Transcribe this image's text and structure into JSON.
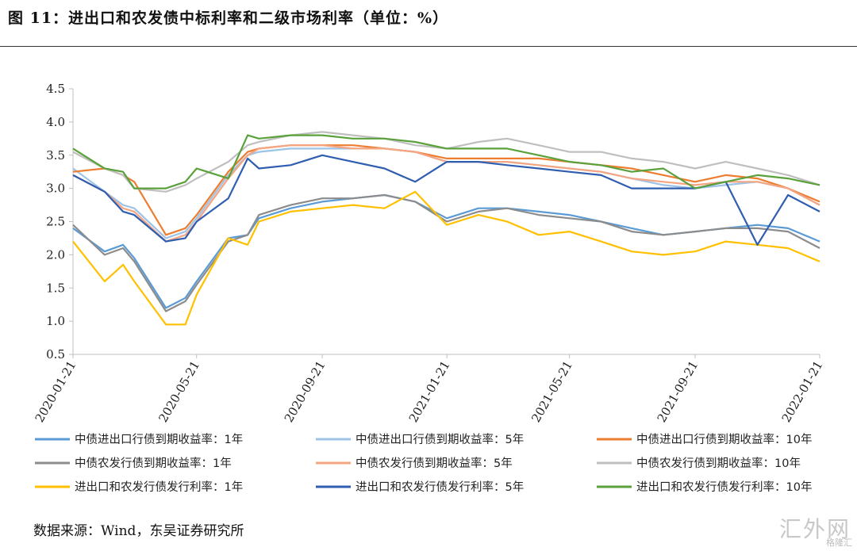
{
  "header": {
    "title": "图 11：进出口和农发债中标利率和二级市场利率（单位：%）"
  },
  "footer": {
    "source": "数据来源：Wind，东吴证券研究所",
    "watermark": "汇外网",
    "watermark_small": "格隆汇"
  },
  "chart_data": {
    "type": "line",
    "title": "图 11：进出口和农发债中标利率和二级市场利率（单位：%）",
    "xlabel": "",
    "ylabel": "",
    "ylim": [
      0.5,
      4.5
    ],
    "yticks": [
      "0.5",
      "1.0",
      "1.5",
      "2.0",
      "2.5",
      "3.0",
      "3.5",
      "4.0",
      "4.5"
    ],
    "xticks": [
      "2020-01-21",
      "2020-05-21",
      "2020-09-21",
      "2021-01-21",
      "2021-05-21",
      "2021-09-21",
      "2022-01-21"
    ],
    "grid": false,
    "legend": "bottom",
    "x": [
      "2020-01-21",
      "2020-02-21",
      "2020-03-10",
      "2020-03-21",
      "2020-04-21",
      "2020-05-10",
      "2020-05-21",
      "2020-06-21",
      "2020-07-10",
      "2020-07-21",
      "2020-08-21",
      "2020-09-21",
      "2020-10-21",
      "2020-11-21",
      "2020-12-21",
      "2021-01-21",
      "2021-02-21",
      "2021-03-21",
      "2021-04-21",
      "2021-05-21",
      "2021-06-21",
      "2021-07-21",
      "2021-08-21",
      "2021-09-21",
      "2021-10-21",
      "2021-11-21",
      "2021-12-21",
      "2022-01-21"
    ],
    "series": [
      {
        "name": "中债进出口行债到期收益率：1年",
        "color": "#5b9bd5",
        "values": [
          2.4,
          2.05,
          2.15,
          1.95,
          1.2,
          1.35,
          1.6,
          2.25,
          2.3,
          2.55,
          2.7,
          2.8,
          2.85,
          2.9,
          2.8,
          2.55,
          2.7,
          2.7,
          2.65,
          2.6,
          2.5,
          2.4,
          2.3,
          2.35,
          2.4,
          2.45,
          2.4,
          2.2
        ]
      },
      {
        "name": "中债进出口行债到期收益率：5年",
        "color": "#9dc3e6",
        "values": [
          3.3,
          2.95,
          2.75,
          2.7,
          2.25,
          2.35,
          2.55,
          3.2,
          3.5,
          3.55,
          3.6,
          3.6,
          3.6,
          3.6,
          3.55,
          3.4,
          3.4,
          3.4,
          3.35,
          3.3,
          3.25,
          3.15,
          3.05,
          3.0,
          3.05,
          3.1,
          3.0,
          2.75
        ]
      },
      {
        "name": "中债进出口行债到期收益率：10年",
        "color": "#ed7d31",
        "values": [
          3.25,
          3.3,
          3.2,
          3.1,
          2.3,
          2.4,
          2.6,
          3.25,
          3.55,
          3.6,
          3.65,
          3.65,
          3.65,
          3.6,
          3.55,
          3.45,
          3.45,
          3.45,
          3.45,
          3.4,
          3.35,
          3.3,
          3.2,
          3.1,
          3.2,
          3.15,
          3.0,
          2.8
        ]
      },
      {
        "name": "中债农发行债到期收益率：1年",
        "color": "#8c8c8c",
        "values": [
          2.45,
          2.0,
          2.1,
          1.9,
          1.15,
          1.3,
          1.55,
          2.2,
          2.3,
          2.6,
          2.75,
          2.85,
          2.85,
          2.9,
          2.8,
          2.5,
          2.65,
          2.7,
          2.6,
          2.55,
          2.5,
          2.35,
          2.3,
          2.35,
          2.4,
          2.4,
          2.35,
          2.1
        ]
      },
      {
        "name": "中债农发行债到期收益率：5年",
        "color": "#f4a582",
        "values": [
          3.2,
          2.95,
          2.7,
          2.65,
          2.2,
          2.3,
          2.5,
          3.15,
          3.5,
          3.6,
          3.65,
          3.65,
          3.6,
          3.6,
          3.55,
          3.4,
          3.4,
          3.4,
          3.35,
          3.3,
          3.25,
          3.15,
          3.1,
          3.05,
          3.1,
          3.1,
          3.0,
          2.75
        ]
      },
      {
        "name": "中债农发行债到期收益率：10年",
        "color": "#bfbfbf",
        "values": [
          3.55,
          3.3,
          3.2,
          3.0,
          2.95,
          3.05,
          3.15,
          3.4,
          3.65,
          3.7,
          3.8,
          3.85,
          3.8,
          3.75,
          3.65,
          3.6,
          3.7,
          3.75,
          3.65,
          3.55,
          3.55,
          3.45,
          3.4,
          3.3,
          3.4,
          3.3,
          3.2,
          3.05
        ]
      },
      {
        "name": "进出口和农发行债发行利率：1年",
        "color": "#ffc000",
        "values": [
          2.2,
          1.6,
          1.85,
          1.6,
          0.95,
          0.95,
          1.4,
          2.25,
          2.15,
          2.5,
          2.65,
          2.7,
          2.75,
          2.7,
          2.95,
          2.45,
          2.6,
          2.5,
          2.3,
          2.35,
          2.2,
          2.05,
          2.0,
          2.05,
          2.2,
          2.15,
          2.1,
          1.9
        ]
      },
      {
        "name": "进出口和农发行债发行利率：5年",
        "color": "#2f5eb0",
        "values": [
          3.2,
          2.95,
          2.65,
          2.6,
          2.2,
          2.25,
          2.5,
          2.85,
          3.45,
          3.3,
          3.35,
          3.5,
          3.4,
          3.3,
          3.1,
          3.4,
          3.4,
          3.35,
          3.3,
          3.25,
          3.2,
          3.0,
          3.0,
          3.0,
          3.1,
          2.15,
          2.9,
          2.65
        ]
      },
      {
        "name": "进出口和农发行债发行利率：10年",
        "color": "#5aa13c",
        "values": [
          3.6,
          3.3,
          3.25,
          3.0,
          3.0,
          3.1,
          3.3,
          3.15,
          3.8,
          3.75,
          3.8,
          3.8,
          3.75,
          3.75,
          3.7,
          3.6,
          3.6,
          3.6,
          3.5,
          3.4,
          3.35,
          3.25,
          3.3,
          3.0,
          3.1,
          3.2,
          3.15,
          3.05
        ]
      }
    ]
  }
}
